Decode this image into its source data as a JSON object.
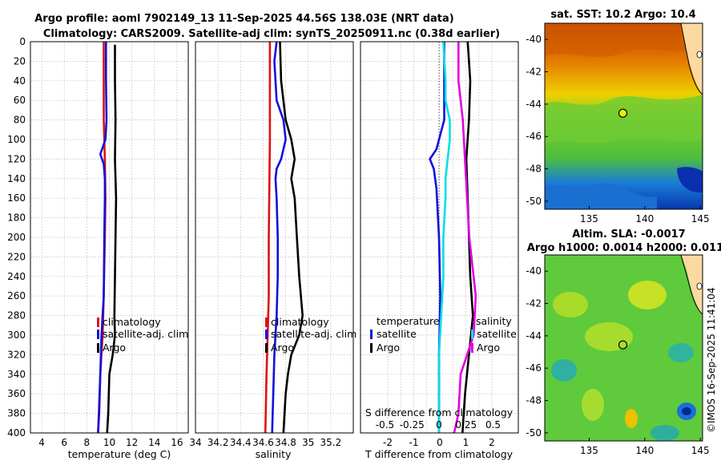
{
  "title_line1": "Argo profile: aoml 7902149_13 11-Sep-2025 44.56S 138.03E (NRT data)",
  "title_line2": "Climatology: CARS2009. Satellite-adj clim: synTS_20250911.nc (0.38d earlier)",
  "watermark": "©IMOS 16-Sep-2025 11:41:04",
  "colors": {
    "climatology": "#e01010",
    "satellite": "#1010e0",
    "argo": "#000000",
    "temp_diff": "#00e0e0",
    "sal_diff": "#e000e0"
  },
  "chart_data": [
    {
      "type": "line",
      "name": "temperature-profile",
      "xlabel": "temperature (deg C)",
      "xlim": [
        3,
        17
      ],
      "ylim": [
        0,
        400
      ],
      "xticks": [
        "4",
        "6",
        "8",
        "10",
        "12",
        "14",
        "16"
      ],
      "yticks": [
        "0",
        "20",
        "40",
        "60",
        "80",
        "100",
        "120",
        "140",
        "160",
        "180",
        "200",
        "220",
        "240",
        "260",
        "280",
        "300",
        "320",
        "340",
        "360",
        "380",
        "400"
      ],
      "legend": [
        "climatology",
        "satellite-adj. clim",
        "Argo"
      ],
      "series": [
        {
          "name": "climatology",
          "depth": [
            0,
            40,
            80,
            120,
            160,
            200,
            260,
            300,
            340,
            400
          ],
          "values": [
            9.5,
            9.5,
            9.5,
            9.6,
            9.65,
            9.6,
            9.5,
            9.4,
            9.2,
            9.0
          ]
        },
        {
          "name": "satellite-adj. clim",
          "depth": [
            0,
            40,
            80,
            100,
            115,
            125,
            140,
            160,
            200,
            260,
            300,
            340,
            380,
            400
          ],
          "values": [
            9.7,
            9.7,
            9.75,
            9.65,
            9.2,
            9.5,
            9.6,
            9.6,
            9.55,
            9.5,
            9.3,
            9.2,
            9.1,
            9.0
          ]
        },
        {
          "name": "Argo",
          "depth": [
            3,
            40,
            80,
            120,
            160,
            200,
            240,
            280,
            300,
            320,
            340,
            380,
            400
          ],
          "values": [
            10.5,
            10.5,
            10.55,
            10.5,
            10.6,
            10.55,
            10.5,
            10.45,
            10.5,
            10.3,
            10.0,
            9.9,
            9.8
          ]
        }
      ]
    },
    {
      "type": "line",
      "name": "salinity-profile",
      "xlabel": "salinity",
      "xlim": [
        34,
        35.4
      ],
      "ylim": [
        0,
        400
      ],
      "xticks": [
        "34",
        "34.2",
        "34.4",
        "34.6",
        "34.8",
        "35",
        "35.2"
      ],
      "legend": [
        "climatology",
        "satellite-adj. clim",
        "Argo"
      ],
      "series": [
        {
          "name": "climatology",
          "depth": [
            0,
            100,
            200,
            260,
            300,
            340,
            400
          ],
          "values": [
            34.66,
            34.66,
            34.65,
            34.65,
            34.64,
            34.63,
            34.62
          ]
        },
        {
          "name": "satellite-adj. clim",
          "depth": [
            0,
            20,
            60,
            80,
            100,
            120,
            130,
            140,
            160,
            200,
            240,
            280,
            320,
            360,
            400
          ],
          "values": [
            34.72,
            34.7,
            34.72,
            34.78,
            34.8,
            34.76,
            34.72,
            34.71,
            34.72,
            34.73,
            34.73,
            34.72,
            34.7,
            34.69,
            34.68
          ]
        },
        {
          "name": "Argo",
          "depth": [
            0,
            40,
            80,
            100,
            120,
            140,
            160,
            200,
            240,
            280,
            300,
            320,
            340,
            360,
            400
          ],
          "values": [
            34.75,
            34.76,
            34.8,
            34.85,
            34.88,
            34.85,
            34.88,
            34.9,
            34.92,
            34.95,
            34.92,
            34.85,
            34.82,
            34.8,
            34.78
          ]
        }
      ]
    },
    {
      "type": "line",
      "name": "difference-profile",
      "xlabel": "T difference from climatology",
      "xlabel_top": "S difference from climatology",
      "xlim": [
        -3,
        3
      ],
      "ylim": [
        0,
        400
      ],
      "xticks": [
        "-2",
        "-1.5",
        "-1",
        "-0.5",
        "0",
        "0.5",
        "1",
        "1.5",
        "2"
      ],
      "xticks_top": [
        "-0.5",
        "-0.25",
        "0",
        "0.25",
        "0.5"
      ],
      "legend_left": [
        "temperature",
        "satellite",
        "Argo"
      ],
      "legend_right": [
        "salinity",
        "satellite",
        "Argo"
      ],
      "series": [
        {
          "name": "T satellite",
          "depth": [
            0,
            40,
            80,
            110,
            120,
            130,
            150,
            200,
            260,
            320,
            400
          ],
          "values": [
            0.2,
            0.2,
            0.2,
            -0.1,
            -0.35,
            -0.2,
            -0.1,
            0.0,
            0.05,
            0.0,
            0.0
          ]
        },
        {
          "name": "T Argo",
          "depth": [
            0,
            40,
            80,
            120,
            160,
            200,
            240,
            280,
            320,
            360,
            400
          ],
          "values": [
            1.1,
            1.2,
            1.15,
            1.05,
            1.1,
            1.15,
            1.2,
            1.3,
            1.15,
            1.0,
            0.9
          ]
        },
        {
          "name": "S satellite",
          "depth": [
            0,
            40,
            60,
            80,
            100,
            120,
            140,
            160,
            200,
            240,
            280,
            320,
            360,
            400
          ],
          "values": [
            0.04,
            0.06,
            0.06,
            0.1,
            0.1,
            0.08,
            0.06,
            0.06,
            0.04,
            0.04,
            0.02,
            0.0,
            0.0,
            0.0
          ]
        },
        {
          "name": "S Argo",
          "depth": [
            0,
            40,
            80,
            120,
            160,
            200,
            260,
            300,
            340,
            380,
            400
          ],
          "values": [
            0.18,
            0.18,
            0.22,
            0.24,
            0.26,
            0.28,
            0.34,
            0.32,
            0.2,
            0.18,
            0.14
          ]
        }
      ]
    },
    {
      "type": "heatmap",
      "name": "sst-map",
      "title": "sat. SST: 10.2 Argo: 10.4",
      "xticks": [
        "135",
        "140",
        "145"
      ],
      "yticks": [
        "-40",
        "-42",
        "-44",
        "-46",
        "-48",
        "-50"
      ],
      "argo_lon": 138.03,
      "argo_lat": -44.56
    },
    {
      "type": "heatmap",
      "name": "sla-map",
      "title_line1": "Altim. SLA: -0.0017",
      "title_line2": "Argo h1000: 0.0014 h2000: 0.0118",
      "xticks": [
        "135",
        "140",
        "145"
      ],
      "yticks": [
        "-40",
        "-42",
        "-44",
        "-46",
        "-48",
        "-50"
      ],
      "argo_lon": 138.03,
      "argo_lat": -44.56
    }
  ]
}
